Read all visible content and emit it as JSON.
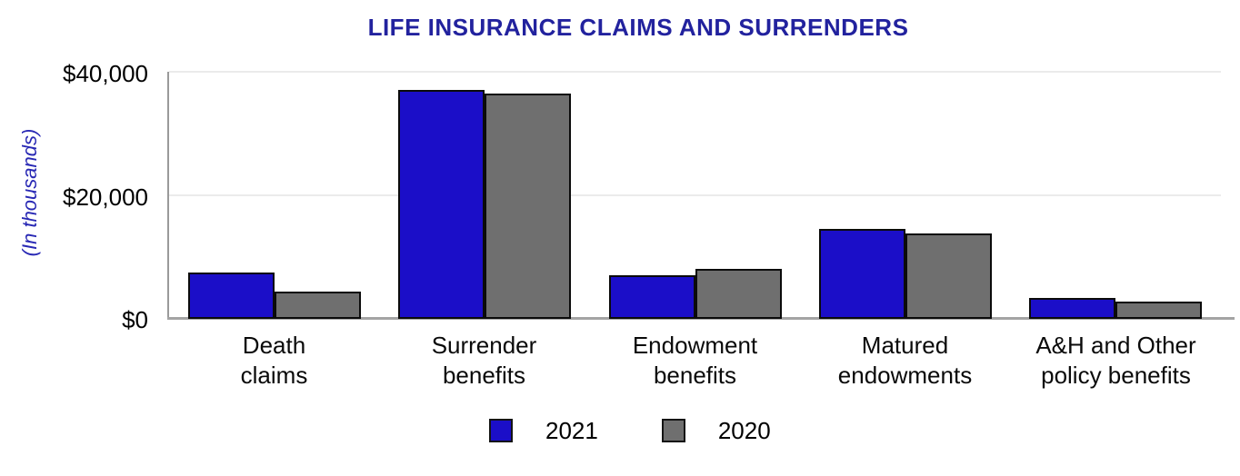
{
  "chart_data": {
    "type": "bar",
    "title": "LIFE INSURANCE CLAIMS AND SURRENDERS",
    "y_axis_title": "(In thousands)",
    "categories": [
      "Death claims",
      "Surrender benefits",
      "Endowment benefits",
      "Matured endowments",
      "A&H and Other policy benefits"
    ],
    "category_lines": [
      [
        "Death",
        "claims"
      ],
      [
        "Surrender",
        "benefits"
      ],
      [
        "Endowment",
        "benefits"
      ],
      [
        "Matured",
        "endowments"
      ],
      [
        "A&H and Other",
        "policy benefits"
      ]
    ],
    "series": [
      {
        "name": "2021",
        "color": "#1B0EC8",
        "values": [
          7400,
          37000,
          7000,
          14400,
          3300
        ]
      },
      {
        "name": "2020",
        "color": "#6F6F6F",
        "values": [
          4300,
          36500,
          8000,
          13700,
          2700
        ]
      }
    ],
    "y_ticks": [
      {
        "value": 0,
        "label": "$0"
      },
      {
        "value": 20000,
        "label": "$20,000"
      },
      {
        "value": 40000,
        "label": "$40,000"
      }
    ],
    "ylim": [
      0,
      40000
    ],
    "grid": true,
    "legend_position": "bottom",
    "units": "$ (in thousands)"
  },
  "colors": {
    "title_text": "#22229E",
    "y_axis_title_text": "#2828B4",
    "bar_2021": "#1B0EC8",
    "bar_2020": "#6F6F6F",
    "bar_border": "#0b0b0b",
    "gridline": "#ebebeb",
    "axis_line": "#a4a4a4",
    "tick_text": "#000000"
  }
}
